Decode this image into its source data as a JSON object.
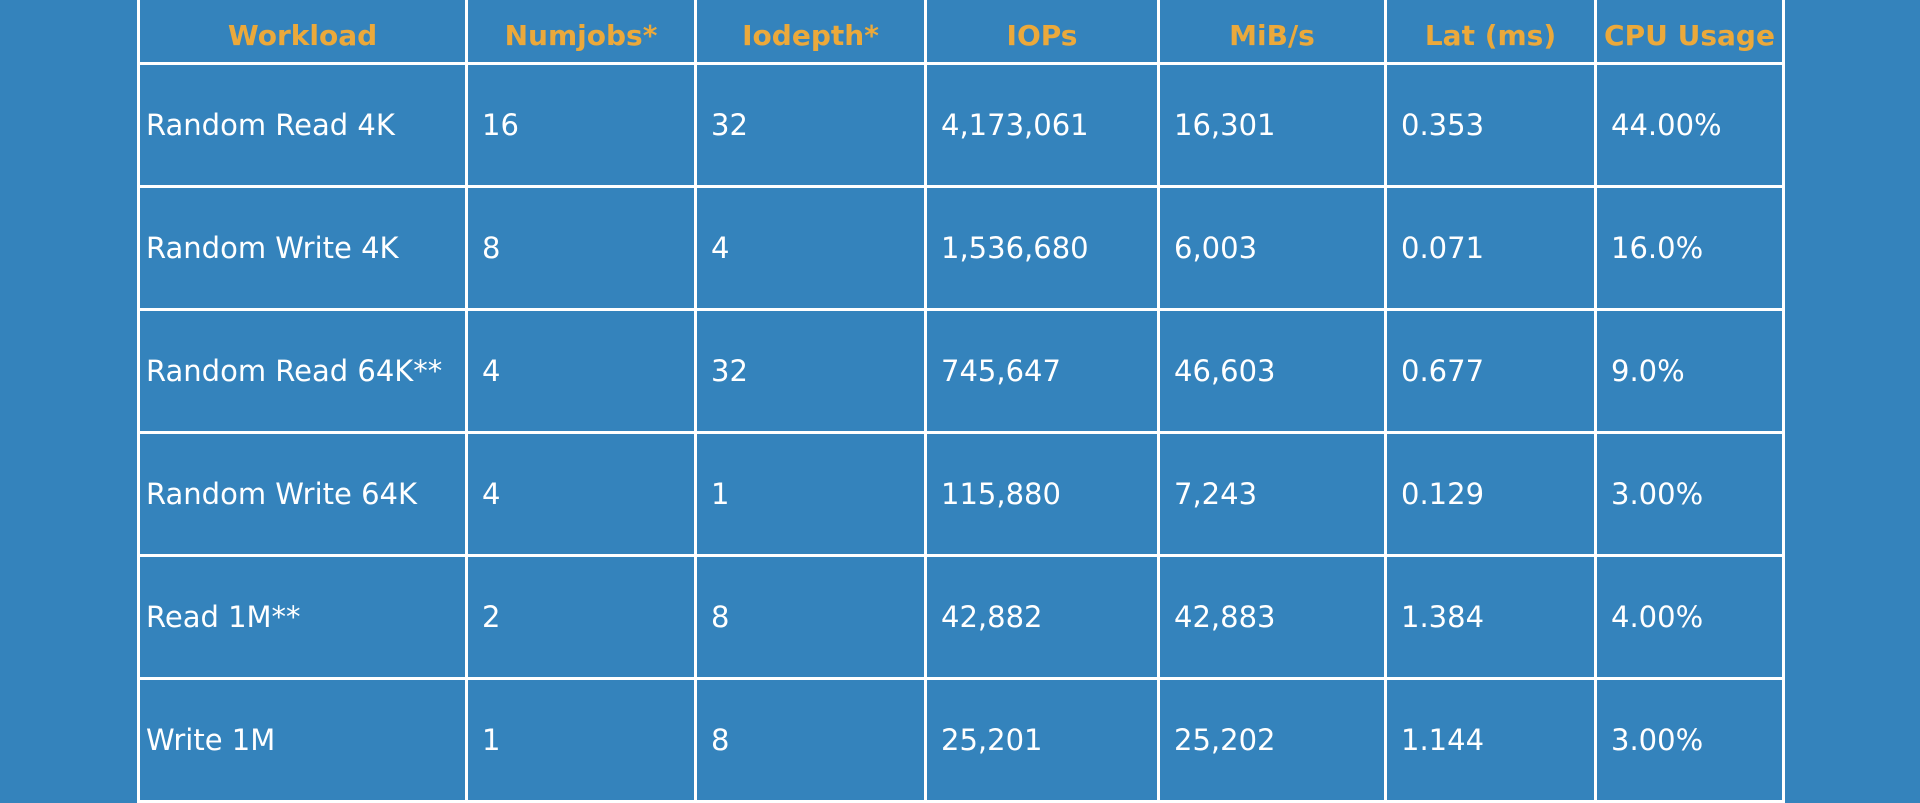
{
  "table": {
    "headers": [
      "Workload",
      "Numjobs*",
      "Iodepth*",
      "IOPs",
      "MiB/s",
      "Lat (ms)",
      "CPU Usage"
    ],
    "rows": [
      [
        "Random Read 4K",
        "16",
        "32",
        "4,173,061",
        "16,301",
        "0.353",
        "44.00%"
      ],
      [
        "Random Write 4K",
        "8",
        "4",
        "1,536,680",
        "6,003",
        "0.071",
        "16.0%"
      ],
      [
        "Random Read 64K**",
        "4",
        "32",
        "745,647",
        "46,603",
        "0.677",
        "9.0%"
      ],
      [
        "Random Write 64K",
        "4",
        "1",
        "115,880",
        "7,243",
        "0.129",
        "3.00%"
      ],
      [
        "Read 1M**",
        "2",
        "8",
        "42,882",
        "42,883",
        "1.384",
        "4.00%"
      ],
      [
        "Write 1M",
        "1",
        "8",
        "25,201",
        "25,202",
        "1.144",
        "3.00%"
      ]
    ]
  }
}
